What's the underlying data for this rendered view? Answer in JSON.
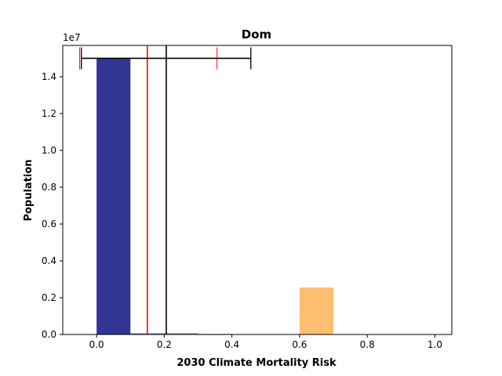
{
  "chart_data": {
    "type": "bar",
    "title": "Dom",
    "xlabel": "2030 Climate Mortality Risk",
    "ylabel": "Population",
    "y_offset_label": "1e7",
    "xlim": [
      -0.1,
      1.05
    ],
    "ylim": [
      0,
      15700000
    ],
    "x_ticks": [
      0.0,
      0.2,
      0.4,
      0.6,
      0.8,
      1.0
    ],
    "x_tick_labels": [
      "0.0",
      "0.2",
      "0.4",
      "0.6",
      "0.8",
      "1.0"
    ],
    "y_ticks": [
      0,
      2000000,
      4000000,
      6000000,
      8000000,
      10000000,
      12000000,
      14000000
    ],
    "y_tick_labels": [
      "0.0",
      "0.2",
      "0.4",
      "0.6",
      "0.8",
      "1.0",
      "1.2",
      "1.4"
    ],
    "bin_width": 0.1,
    "bars": [
      {
        "x_start": 0.0,
        "value": 15000000,
        "color": "#313695"
      },
      {
        "x_start": 0.1,
        "value": 60000,
        "color": "#4575b4"
      },
      {
        "x_start": 0.2,
        "value": 80000,
        "color": "#74add1"
      },
      {
        "x_start": 0.3,
        "value": 40000,
        "color": "#abd9e9"
      },
      {
        "x_start": 0.4,
        "value": 15000,
        "color": "#fee090"
      },
      {
        "x_start": 0.5,
        "value": 0,
        "color": "#fdae61"
      },
      {
        "x_start": 0.6,
        "value": 2550000,
        "color": "#fdbf6f"
      },
      {
        "x_start": 0.7,
        "value": 0,
        "color": "#f46d43"
      },
      {
        "x_start": 0.8,
        "value": 0,
        "color": "#d73027"
      },
      {
        "x_start": 0.9,
        "value": 0,
        "color": "#a50026"
      }
    ],
    "vertical_lines": [
      {
        "x": 0.15,
        "color": "#ff0000"
      },
      {
        "x": 0.206,
        "color": "#000000"
      }
    ],
    "error_bars": [
      {
        "y": 15000000,
        "x_low": -0.045,
        "x_high": 0.456,
        "color": "#000000"
      }
    ],
    "red_markers": [
      {
        "x": -0.05,
        "y": 15000000
      },
      {
        "x": 0.356,
        "y": 15000000
      }
    ],
    "grid": false,
    "legend": "none"
  }
}
